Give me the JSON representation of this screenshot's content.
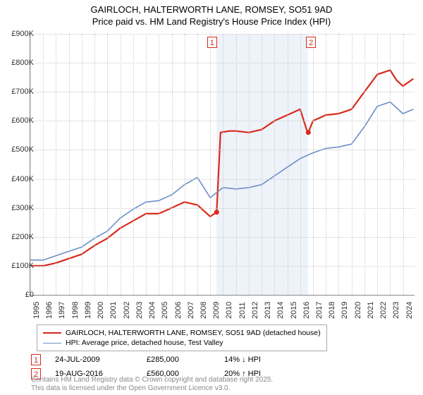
{
  "title_line1": "GAIRLOCH, HALTERWORTH LANE, ROMSEY, SO51 9AD",
  "title_line2": "Price paid vs. HM Land Registry's House Price Index (HPI)",
  "chart": {
    "type": "line",
    "x_years": [
      1995,
      1996,
      1997,
      1998,
      1999,
      2000,
      2001,
      2002,
      2003,
      2004,
      2005,
      2006,
      2007,
      2008,
      2009,
      2010,
      2011,
      2012,
      2013,
      2014,
      2015,
      2016,
      2017,
      2018,
      2019,
      2020,
      2021,
      2022,
      2023,
      2024
    ],
    "y_ticks": [
      0,
      100,
      200,
      300,
      400,
      500,
      600,
      700,
      800,
      900
    ],
    "y_tick_labels": [
      "£0",
      "£100K",
      "£200K",
      "£300K",
      "£400K",
      "£500K",
      "£600K",
      "£700K",
      "£800K",
      "£900K"
    ],
    "ylim": [
      0,
      900
    ],
    "shaded_band": {
      "x_start": 2009.5,
      "x_end": 2016.63
    },
    "series": [
      {
        "name": "GAIRLOCH, HALTERWORTH LANE, ROMSEY, SO51 9AD (detached house)",
        "color": "#d9291c",
        "width": 2.2,
        "points": [
          [
            1995,
            100
          ],
          [
            1996,
            100
          ],
          [
            1997,
            110
          ],
          [
            1998,
            125
          ],
          [
            1999,
            140
          ],
          [
            2000,
            170
          ],
          [
            2001,
            195
          ],
          [
            2002,
            230
          ],
          [
            2003,
            255
          ],
          [
            2004,
            280
          ],
          [
            2005,
            280
          ],
          [
            2006,
            300
          ],
          [
            2007,
            320
          ],
          [
            2008,
            310
          ],
          [
            2009,
            270
          ],
          [
            2009.5,
            285
          ],
          [
            2009.8,
            560
          ],
          [
            2010.5,
            565
          ],
          [
            2011,
            565
          ],
          [
            2012,
            560
          ],
          [
            2013,
            570
          ],
          [
            2014,
            600
          ],
          [
            2015,
            620
          ],
          [
            2016,
            640
          ],
          [
            2016.5,
            570
          ],
          [
            2016.63,
            560
          ],
          [
            2017,
            600
          ],
          [
            2018,
            620
          ],
          [
            2019,
            625
          ],
          [
            2020,
            640
          ],
          [
            2021,
            700
          ],
          [
            2022,
            760
          ],
          [
            2023,
            775
          ],
          [
            2023.5,
            740
          ],
          [
            2024,
            720
          ],
          [
            2024.8,
            745
          ]
        ]
      },
      {
        "name": "HPI: Average price, detached house, Test Valley",
        "color": "#6b8fc9",
        "width": 1.6,
        "points": [
          [
            1995,
            120
          ],
          [
            1996,
            120
          ],
          [
            1997,
            135
          ],
          [
            1998,
            150
          ],
          [
            1999,
            165
          ],
          [
            2000,
            195
          ],
          [
            2001,
            220
          ],
          [
            2002,
            265
          ],
          [
            2003,
            295
          ],
          [
            2004,
            320
          ],
          [
            2005,
            325
          ],
          [
            2006,
            345
          ],
          [
            2007,
            380
          ],
          [
            2008,
            405
          ],
          [
            2009,
            335
          ],
          [
            2010,
            370
          ],
          [
            2011,
            365
          ],
          [
            2012,
            370
          ],
          [
            2013,
            380
          ],
          [
            2014,
            410
          ],
          [
            2015,
            440
          ],
          [
            2016,
            470
          ],
          [
            2017,
            490
          ],
          [
            2018,
            505
          ],
          [
            2019,
            510
          ],
          [
            2020,
            520
          ],
          [
            2021,
            580
          ],
          [
            2022,
            650
          ],
          [
            2023,
            665
          ],
          [
            2024,
            625
          ],
          [
            2024.8,
            640
          ]
        ]
      }
    ],
    "markers": [
      {
        "n": "1",
        "x": 2009.5,
        "y": 285,
        "color": "#d9291c"
      },
      {
        "n": "2",
        "x": 2016.63,
        "y": 560,
        "color": "#d9291c"
      }
    ],
    "marker_badges": [
      {
        "n": "1",
        "x": 2009.2,
        "color": "#d9291c"
      },
      {
        "n": "2",
        "x": 2016.9,
        "color": "#d9291c"
      }
    ],
    "background_color": "#ffffff",
    "grid_color": "#cccccc"
  },
  "legend": {
    "items": [
      {
        "color": "#d9291c",
        "width": 2.2,
        "label": "GAIRLOCH, HALTERWORTH LANE, ROMSEY, SO51 9AD (detached house)"
      },
      {
        "color": "#6b8fc9",
        "width": 1.6,
        "label": "HPI: Average price, detached house, Test Valley"
      }
    ]
  },
  "transactions": [
    {
      "n": "1",
      "color": "#d9291c",
      "date": "24-JUL-2009",
      "price": "£285,000",
      "delta": "14% ↓ HPI"
    },
    {
      "n": "2",
      "color": "#d9291c",
      "date": "19-AUG-2016",
      "price": "£560,000",
      "delta": "20% ↑ HPI"
    }
  ],
  "footnote_line1": "Contains HM Land Registry data © Crown copyright and database right 2025.",
  "footnote_line2": "This data is licensed under the Open Government Licence v3.0."
}
